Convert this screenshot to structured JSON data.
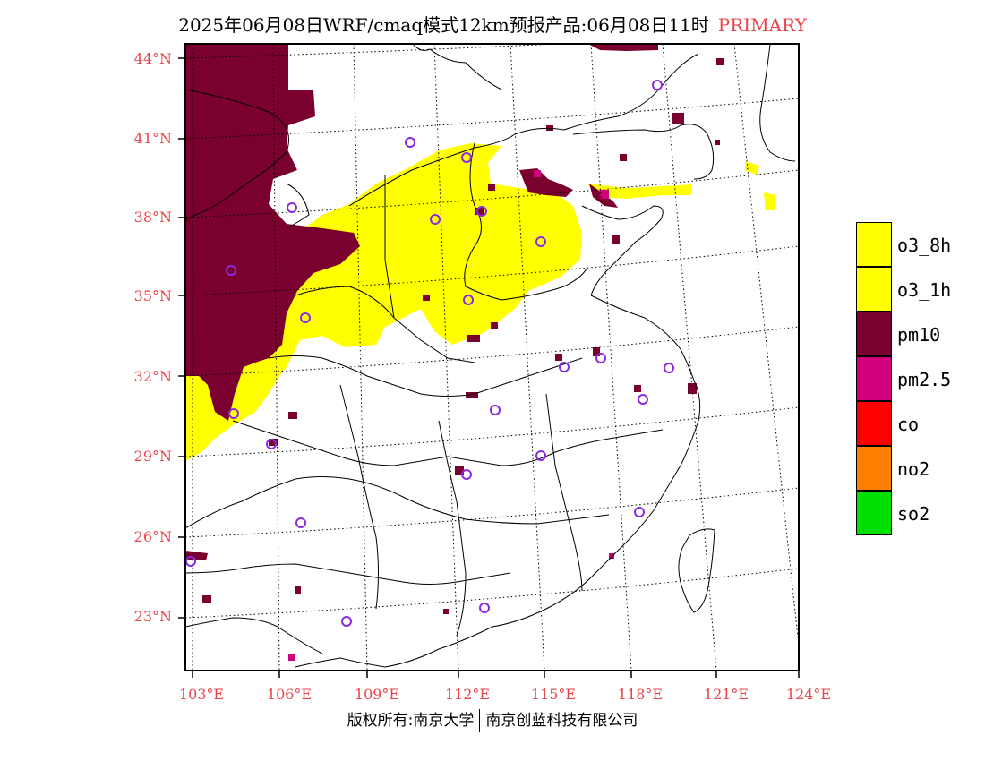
{
  "header": {
    "title": "2025年06月08日WRF/cmaq模式12km预报产品:06月08日11时",
    "tag": "PRIMARY"
  },
  "map": {
    "lat_labels": [
      "44°N",
      "41°N",
      "38°N",
      "35°N",
      "32°N",
      "29°N",
      "26°N",
      "23°N"
    ],
    "lon_labels": [
      "103°E",
      "106°E",
      "109°E",
      "112°E",
      "115°E",
      "118°E",
      "121°E",
      "124°E"
    ],
    "colors": {
      "o3_8h": "#ffff00",
      "o3_1h": "#ffff00",
      "pm10": "#7a0030",
      "pm25": "#d0007a",
      "co": "#ff0000",
      "no2": "#ff8000",
      "so2": "#00e000",
      "station": "#8a2be2",
      "label": "#e8454a"
    }
  },
  "legend": {
    "items": [
      {
        "label": "o3_8h",
        "color": "#ffff00"
      },
      {
        "label": "o3_1h",
        "color": "#ffff00"
      },
      {
        "label": "pm10",
        "color": "#7a0030"
      },
      {
        "label": "pm2.5",
        "color": "#d0007a"
      },
      {
        "label": "co",
        "color": "#ff0000"
      },
      {
        "label": "no2",
        "color": "#ff8000"
      },
      {
        "label": "so2",
        "color": "#00e000"
      }
    ]
  },
  "footer": {
    "left": "版权所有:南京大学",
    "right": "南京创蓝科技有限公司"
  }
}
